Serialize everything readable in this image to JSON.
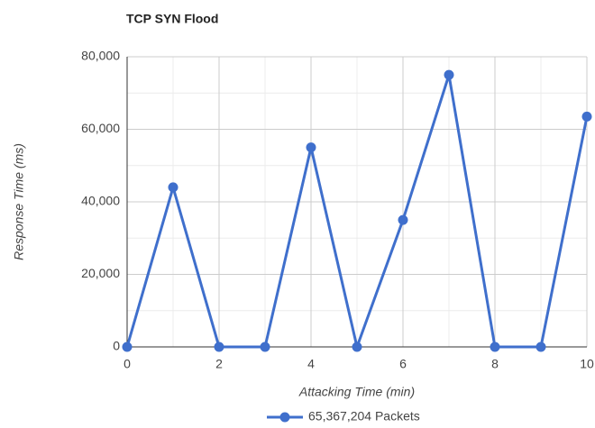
{
  "chart_data": {
    "type": "line",
    "title": "TCP SYN Flood",
    "x_label": "Attacking Time (min)",
    "y_label": "Response Time (ms)",
    "x": [
      0,
      1,
      2,
      3,
      4,
      5,
      6,
      7,
      8,
      9,
      10
    ],
    "series": [
      {
        "name": "65,367,204 Packets",
        "color": "#3f6fcc",
        "values": [
          0,
          44000,
          0,
          0,
          55000,
          0,
          35000,
          75000,
          0,
          0,
          63500
        ]
      }
    ],
    "xlim": [
      0,
      10
    ],
    "xticks": [
      0,
      2,
      4,
      6,
      8,
      10
    ],
    "x_minor_ticks": [
      1,
      3,
      5,
      7,
      9
    ],
    "ylim": [
      0,
      80000
    ],
    "yticks": [
      {
        "value": 0,
        "label": "0"
      },
      {
        "value": 20000,
        "label": "20,000"
      },
      {
        "value": 40000,
        "label": "40,000"
      },
      {
        "value": 60000,
        "label": "60,000"
      },
      {
        "value": 80000,
        "label": "80,000"
      }
    ],
    "y_minor_ticks": [
      10000,
      30000,
      50000,
      70000
    ],
    "grid": true,
    "legend": "bottom"
  }
}
